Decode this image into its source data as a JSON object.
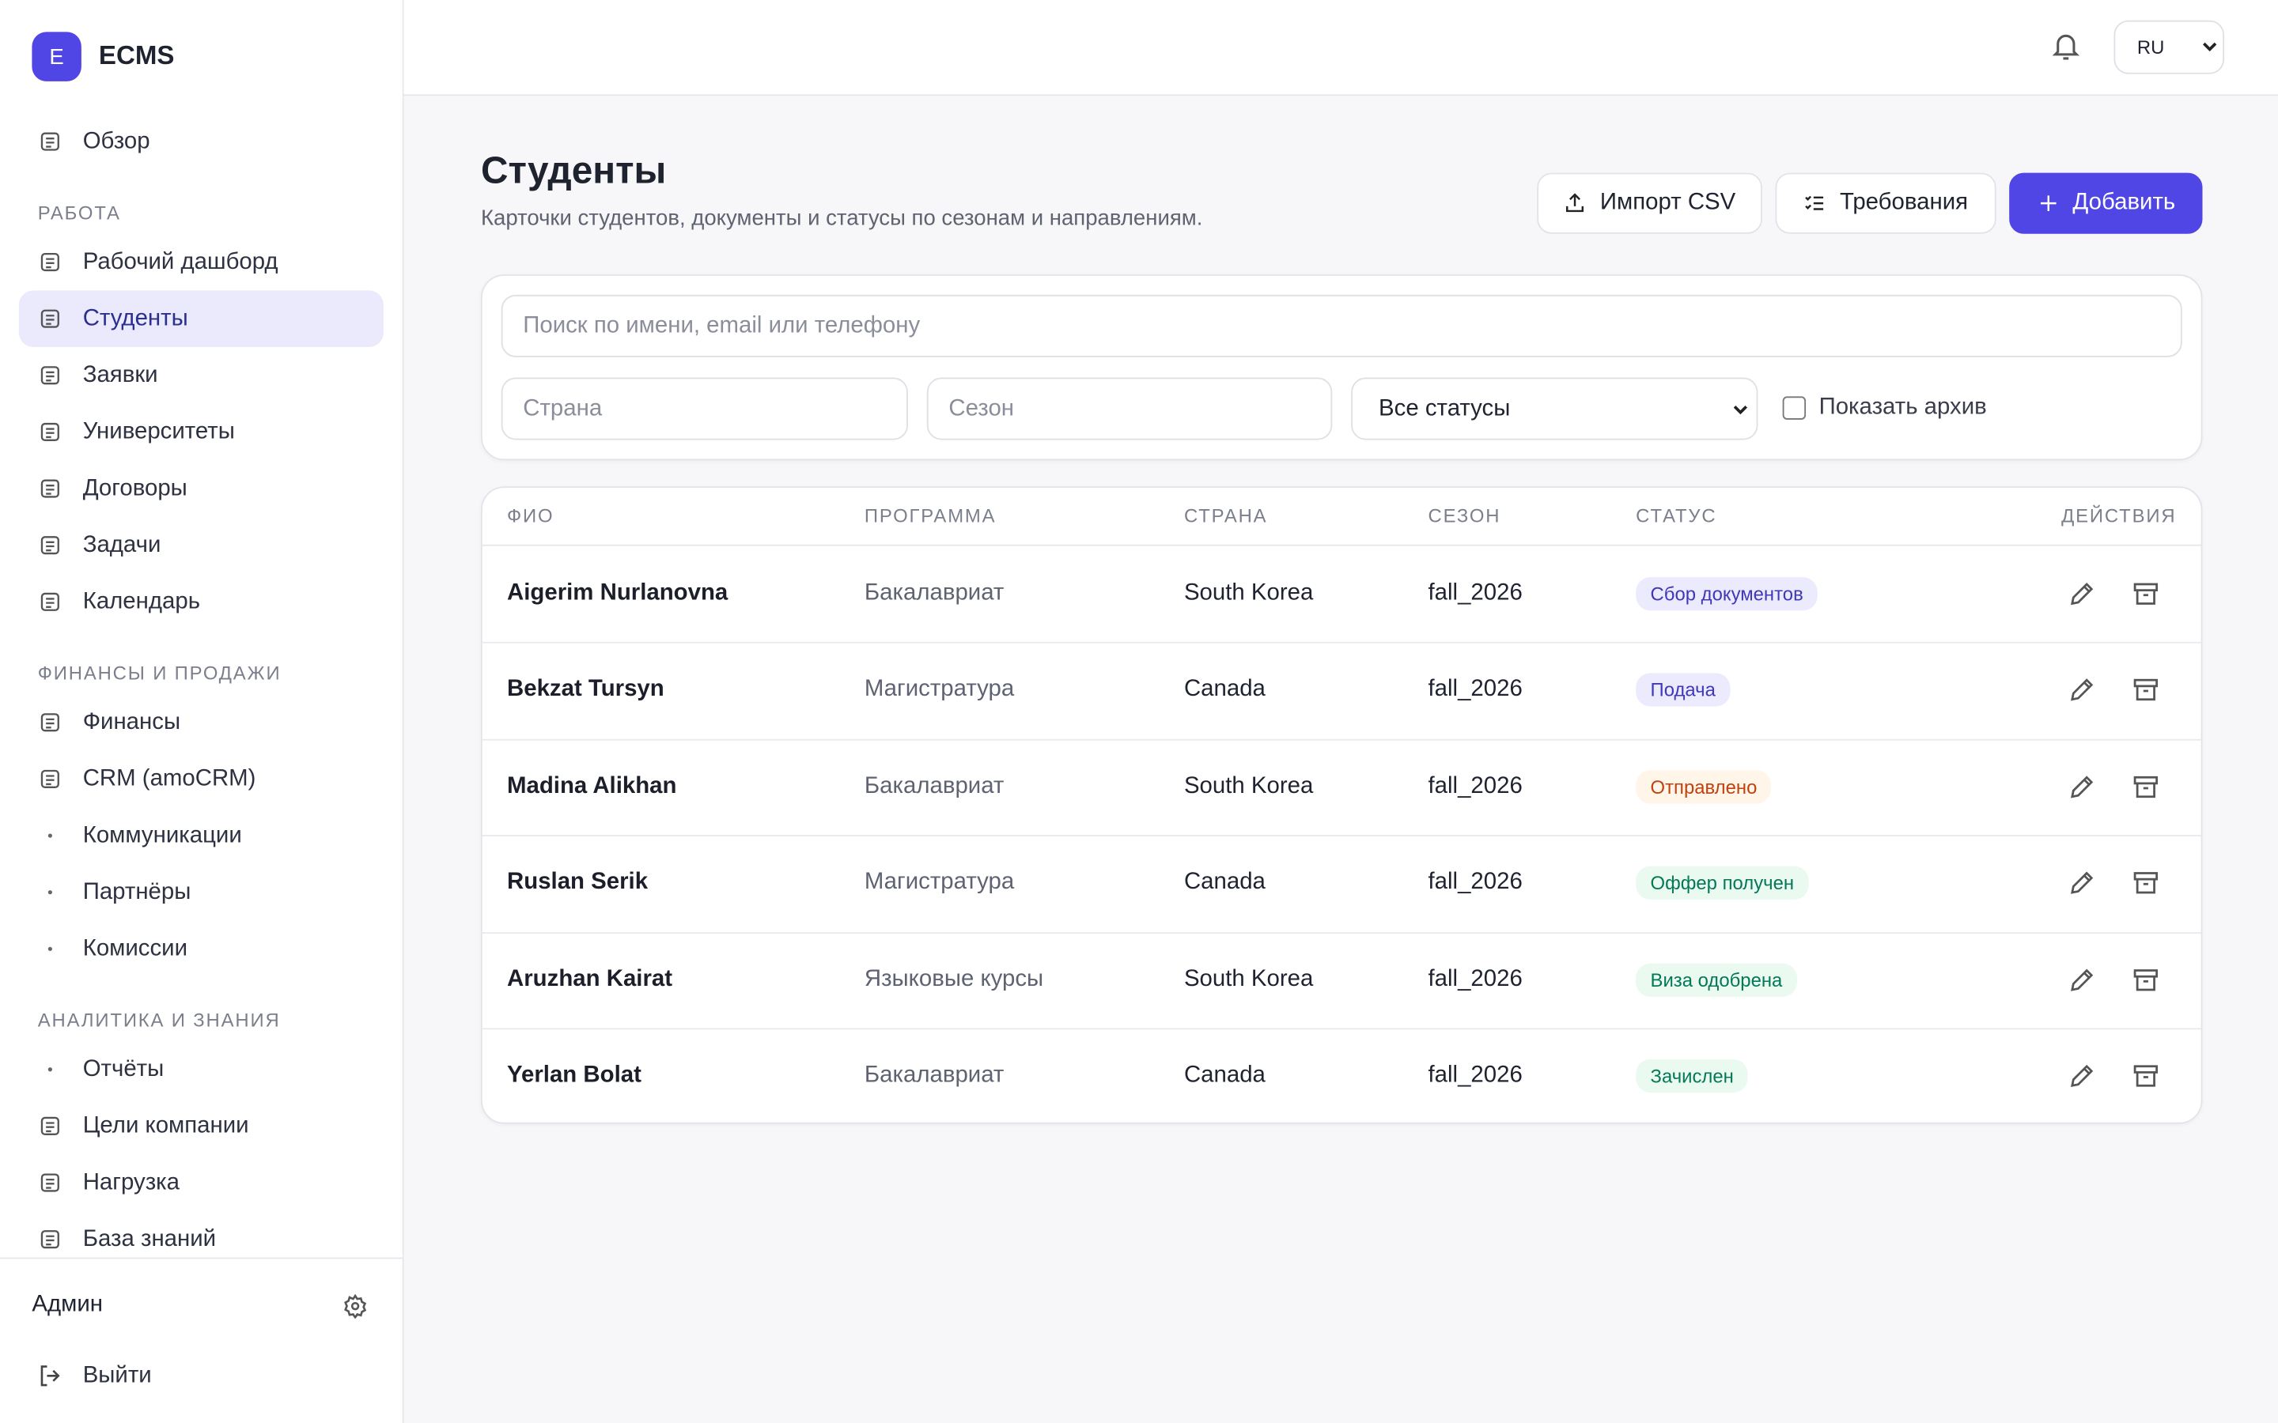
{
  "sidebar": {
    "logo_letter": "E",
    "brand": "ECMS",
    "nav": [
      {
        "items": [
          "Обзор"
        ]
      },
      {
        "label": "РАБОТА",
        "items": [
          "Рабочий дашборд",
          "Студенты",
          "Заявки",
          "Университеты",
          "Договоры",
          "Задачи",
          "Календарь"
        ]
      },
      {
        "label": "ФИНАНСЫ И ПРОДАЖИ",
        "items": [
          "Финансы",
          "CRM (amoCRM)",
          "Коммуникации",
          "Партнёры",
          "Комиссии"
        ]
      },
      {
        "label": "АНАЛИТИКА И ЗНАНИЯ",
        "items": [
          "Отчёты",
          "Цели компании",
          "Нагрузка",
          "База знаний"
        ]
      }
    ],
    "user": "Админ",
    "logout": "Выйти"
  },
  "topbar": {
    "language": "RU"
  },
  "header": {
    "title": "Студенты",
    "subtitle": "Карточки студентов, документы и статусы по сезонам и направлениям.",
    "buttons": [
      "Импорт CSV",
      "Требования",
      "Добавить"
    ]
  },
  "filters": {
    "search": "Поиск по имени, email или телефону",
    "country": "Страна",
    "season": "Сезон",
    "status": "Все статусы",
    "archive": "Показать архив"
  },
  "table": {
    "columns": [
      "ФИО",
      "ПРОГРАММА",
      "СТРАНА",
      "СЕЗОН",
      "СТАТУС",
      "ДЕЙСТВИЯ"
    ],
    "rows": [
      {
        "name": "Aigerim Nurlanovna",
        "program": "Бакалавриат",
        "country": "South Korea",
        "season": "fall_2026",
        "status": "Сбор документов",
        "status_bg": "#ecebfd",
        "status_fg": "#3f38b8"
      },
      {
        "name": "Bekzat Tursyn",
        "program": "Магистратура",
        "country": "Canada",
        "season": "fall_2026",
        "status": "Подача",
        "status_bg": "#ecebfd",
        "status_fg": "#3f38b8"
      },
      {
        "name": "Madina Alikhan",
        "program": "Бакалавриат",
        "country": "South Korea",
        "season": "fall_2026",
        "status": "Отправлено",
        "status_bg": "#fff5e8",
        "status_fg": "#c2410c"
      },
      {
        "name": "Ruslan Serik",
        "program": "Магистратура",
        "country": "Canada",
        "season": "fall_2026",
        "status": "Оффер получен",
        "status_bg": "#eafaf1",
        "status_fg": "#047857"
      },
      {
        "name": "Aruzhan Kairat",
        "program": "Языковые курсы",
        "country": "South Korea",
        "season": "fall_2026",
        "status": "Виза одобрена",
        "status_bg": "#eafaf1",
        "status_fg": "#047857"
      },
      {
        "name": "Yerlan Bolat",
        "program": "Бакалавриат",
        "country": "Canada",
        "season": "fall_2026",
        "status": "Зачислен",
        "status_bg": "#eafaf1",
        "status_fg": "#047857"
      }
    ]
  }
}
